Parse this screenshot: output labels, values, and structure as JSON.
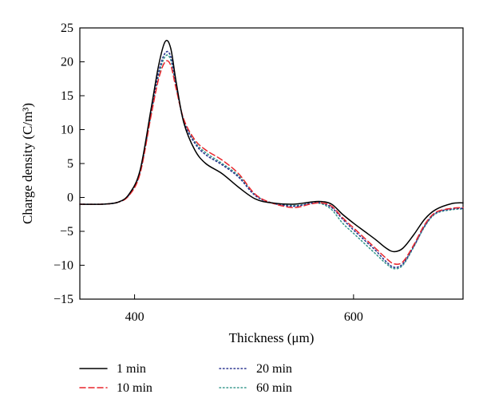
{
  "chart_data": {
    "type": "line",
    "title": "",
    "xlabel": "Thickness (μm)",
    "ylabel": "Charge density (C/m³)",
    "xlim": [
      350,
      700
    ],
    "ylim": [
      -15,
      25
    ],
    "xticks": [
      400,
      600
    ],
    "yticks": [
      25,
      20,
      15,
      10,
      5,
      0,
      -5,
      -10,
      -15
    ],
    "grid": false,
    "legend_position": "bottom",
    "series": [
      {
        "name": "1 min",
        "color": "#000000",
        "dash": "solid",
        "x": [
          350,
          370,
          385,
          395,
          405,
          415,
          422,
          428,
          433,
          438,
          445,
          455,
          465,
          480,
          495,
          510,
          525,
          545,
          560,
          570,
          580,
          590,
          600,
          610,
          620,
          630,
          637,
          645,
          655,
          665,
          675,
          690,
          700
        ],
        "y": [
          -1,
          -1,
          -0.7,
          0.5,
          4,
          13,
          19.5,
          23,
          22,
          17,
          11,
          7,
          5,
          3.5,
          1.5,
          -0.2,
          -0.8,
          -1,
          -0.7,
          -0.6,
          -1,
          -2.5,
          -3.8,
          -5,
          -6.2,
          -7.5,
          -8,
          -7.5,
          -5.5,
          -3.2,
          -1.8,
          -0.9,
          -0.8
        ]
      },
      {
        "name": "10 min",
        "color": "#e8252b",
        "dash": "dashed",
        "x": [
          350,
          370,
          385,
          395,
          405,
          415,
          422,
          428,
          433,
          438,
          445,
          455,
          465,
          480,
          495,
          510,
          525,
          545,
          560,
          570,
          580,
          590,
          600,
          610,
          620,
          630,
          637,
          645,
          655,
          665,
          675,
          690,
          700
        ],
        "y": [
          -1,
          -1,
          -0.7,
          0.3,
          3.5,
          12,
          17.5,
          20,
          19.5,
          16,
          11.5,
          8.5,
          7,
          5.5,
          3.5,
          0.5,
          -0.8,
          -1.5,
          -1,
          -0.8,
          -1.3,
          -3,
          -4.5,
          -6,
          -7.5,
          -9,
          -9.8,
          -9.5,
          -7,
          -4,
          -2.2,
          -1.6,
          -1.5
        ]
      },
      {
        "name": "20 min",
        "color": "#2c3590",
        "dash": "dotted",
        "x": [
          350,
          370,
          385,
          395,
          405,
          415,
          422,
          428,
          433,
          438,
          445,
          455,
          465,
          480,
          495,
          510,
          525,
          545,
          560,
          570,
          580,
          590,
          600,
          610,
          620,
          630,
          637,
          645,
          655,
          665,
          675,
          690,
          700
        ],
        "y": [
          -1,
          -1,
          -0.7,
          0.4,
          3.8,
          12.5,
          18.5,
          21.3,
          20.8,
          16.5,
          11.2,
          8,
          6.3,
          4.8,
          3,
          0.3,
          -0.8,
          -1.3,
          -0.9,
          -0.8,
          -1.5,
          -3.2,
          -4.8,
          -6.3,
          -7.8,
          -9.5,
          -10.3,
          -9.8,
          -7.2,
          -4.2,
          -2.3,
          -1.7,
          -1.6
        ]
      },
      {
        "name": "60 min",
        "color": "#3a9a8e",
        "dash": "dotted",
        "x": [
          350,
          370,
          385,
          395,
          405,
          415,
          422,
          428,
          433,
          438,
          445,
          455,
          465,
          480,
          495,
          510,
          525,
          545,
          560,
          570,
          580,
          590,
          600,
          610,
          620,
          630,
          637,
          645,
          655,
          665,
          675,
          690,
          700
        ],
        "y": [
          -1,
          -1,
          -0.7,
          0.4,
          3.7,
          12.2,
          18,
          20.8,
          20.3,
          16.3,
          11.3,
          8.2,
          6.6,
          5,
          3.2,
          0.4,
          -0.8,
          -1.2,
          -0.9,
          -0.9,
          -1.8,
          -3.8,
          -5.3,
          -6.8,
          -8.3,
          -9.8,
          -10.5,
          -10,
          -7.3,
          -4.3,
          -2.4,
          -1.8,
          -1.7
        ]
      }
    ]
  }
}
